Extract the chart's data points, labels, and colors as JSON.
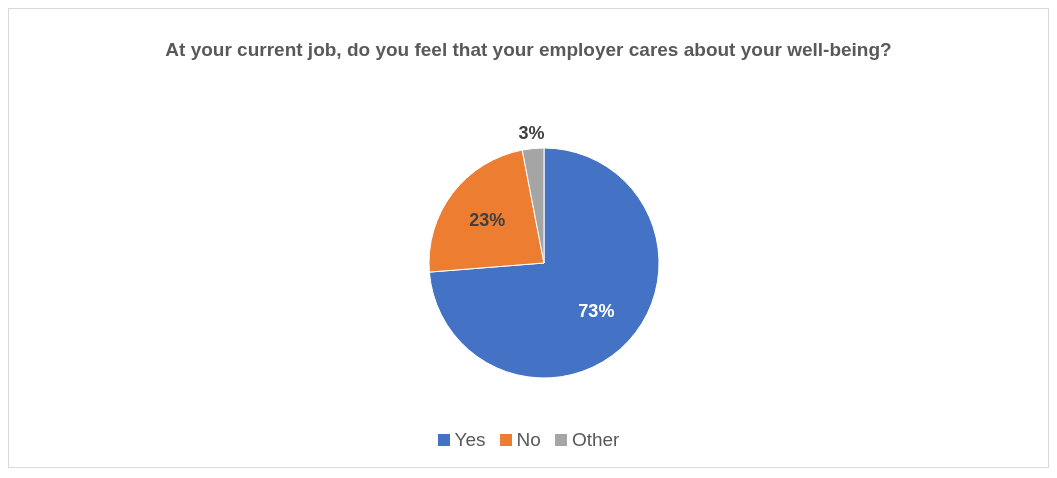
{
  "chart_data": {
    "type": "pie",
    "title": "At your current job, do you feel that your employer cares about your well-being?",
    "categories": [
      "Yes",
      "No",
      "Other"
    ],
    "values": [
      73,
      23,
      3
    ],
    "colors": [
      "#4472c4",
      "#ed7d31",
      "#a5a5a5"
    ],
    "value_labels": [
      "73%",
      "23%",
      "3%"
    ],
    "legend": "bottom"
  }
}
